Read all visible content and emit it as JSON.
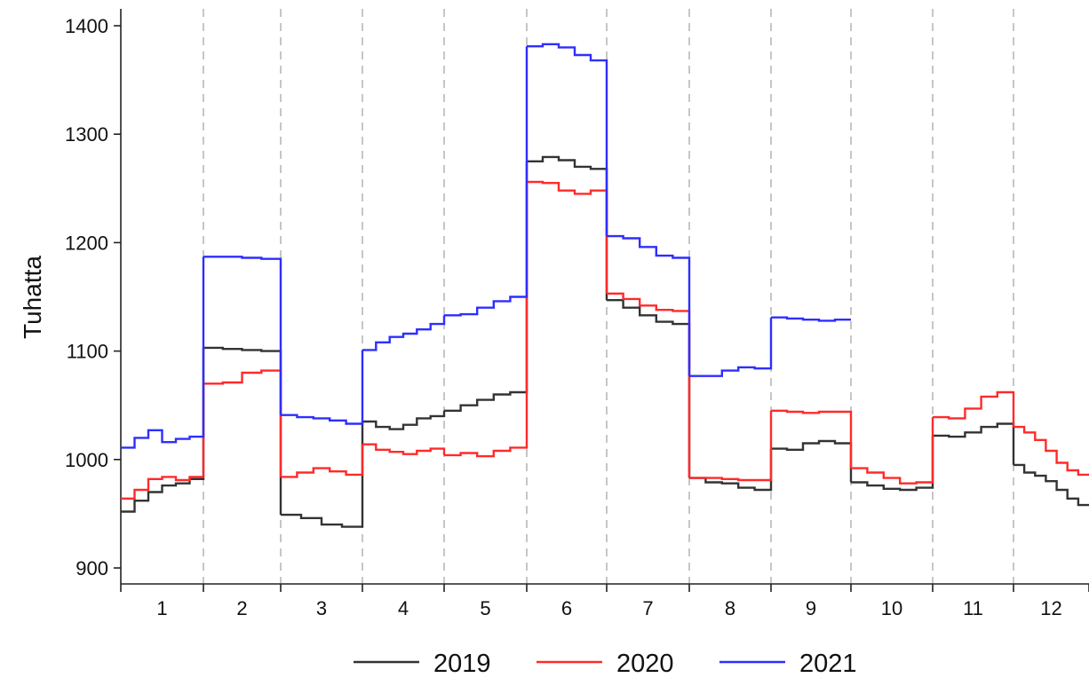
{
  "chart_data": {
    "type": "line",
    "title": "",
    "xlabel": "",
    "ylabel": "Tuhatta",
    "ylim": [
      880,
      1420
    ],
    "yticks": [
      900,
      1000,
      1100,
      1200,
      1300,
      1400
    ],
    "categories": [
      "1",
      "2",
      "3",
      "4",
      "5",
      "6",
      "7",
      "8",
      "9",
      "10",
      "11",
      "12"
    ],
    "month_separators": "dashed",
    "legend_position": "bottom",
    "series": [
      {
        "name": "2019",
        "color": "#333333",
        "values": [
          [
            952,
            962,
            970,
            976,
            978,
            982
          ],
          [
            1103,
            1102,
            1101,
            1100
          ],
          [
            949,
            946,
            940,
            938
          ],
          [
            1035,
            1030,
            1028,
            1032,
            1038,
            1040
          ],
          [
            1045,
            1050,
            1055,
            1060,
            1062
          ],
          [
            1275,
            1279,
            1276,
            1270,
            1268
          ],
          [
            1147,
            1140,
            1133,
            1127,
            1125
          ],
          [
            983,
            979,
            978,
            974,
            972
          ],
          [
            1010,
            1009,
            1015,
            1017,
            1015
          ],
          [
            979,
            976,
            973,
            972,
            974
          ],
          [
            1022,
            1021,
            1025,
            1030,
            1033
          ],
          [
            995,
            988,
            985,
            980,
            972,
            964,
            958
          ]
        ]
      },
      {
        "name": "2020",
        "color": "#ff2a2a",
        "values": [
          [
            964,
            972,
            982,
            984,
            981,
            984
          ],
          [
            1070,
            1071,
            1080,
            1082
          ],
          [
            984,
            988,
            992,
            989,
            986
          ],
          [
            1014,
            1009,
            1007,
            1005,
            1008,
            1010
          ],
          [
            1004,
            1006,
            1003,
            1008,
            1011
          ],
          [
            1256,
            1255,
            1248,
            1245,
            1248
          ],
          [
            1153,
            1148,
            1142,
            1138,
            1137
          ],
          [
            983,
            983,
            982,
            981,
            981
          ],
          [
            1045,
            1044,
            1043,
            1044,
            1044
          ],
          [
            992,
            988,
            983,
            978,
            979
          ],
          [
            1039,
            1038,
            1047,
            1058,
            1062
          ],
          [
            1030,
            1025,
            1018,
            1008,
            997,
            990,
            986
          ]
        ]
      },
      {
        "name": "2021",
        "color": "#2e2eff",
        "values": [
          [
            1011,
            1020,
            1027,
            1016,
            1019,
            1021
          ],
          [
            1187,
            1187,
            1186,
            1185
          ],
          [
            1041,
            1039,
            1038,
            1036,
            1033
          ],
          [
            1101,
            1108,
            1113,
            1116,
            1120,
            1125
          ],
          [
            1133,
            1134,
            1140,
            1146,
            1150
          ],
          [
            1381,
            1383,
            1380,
            1373,
            1368
          ],
          [
            1206,
            1204,
            1196,
            1188,
            1186
          ],
          [
            1077,
            1077,
            1082,
            1085,
            1084
          ],
          [
            1131,
            1130,
            1129,
            1128,
            1129
          ],
          [],
          [],
          []
        ]
      }
    ]
  }
}
